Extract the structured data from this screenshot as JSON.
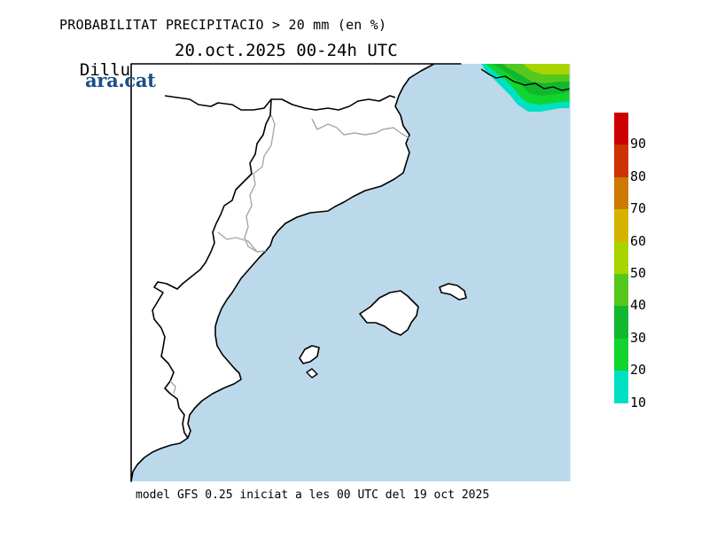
{
  "title": "PROBABILITAT PRECIPITACIO > 20 mm (en %)",
  "day": "Dilluns",
  "date_range": "20.oct.2025 00-24h UTC",
  "logo": "ara.cat",
  "footer": "model GFS 0.25 iniciat a les 00 UTC del 19 oct 2025",
  "colors": {
    "sea": "#bcd9ec",
    "land": "#ffffff",
    "coast": "#000000",
    "border": "#a8a8a8"
  },
  "legend": {
    "labels": [
      "90",
      "80",
      "70",
      "60",
      "50",
      "40",
      "30",
      "20",
      "10"
    ],
    "colors": [
      "#cc0000",
      "#cc3300",
      "#cc7a00",
      "#d4b400",
      "#a8d400",
      "#55c81e",
      "#11b82d",
      "#11d42d",
      "#00e0c2"
    ]
  }
}
